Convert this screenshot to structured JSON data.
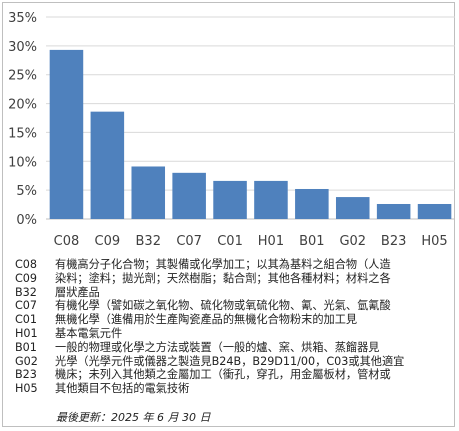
{
  "chart_data": {
    "type": "bar",
    "categories": [
      "C08",
      "C09",
      "B32",
      "C07",
      "C01",
      "H01",
      "B01",
      "G02",
      "B23",
      "H05"
    ],
    "values": [
      29.3,
      18.6,
      9.1,
      8.0,
      6.6,
      6.6,
      5.2,
      3.8,
      2.6,
      2.6
    ],
    "yticks": [
      "0%",
      "5%",
      "10%",
      "15%",
      "20%",
      "25%",
      "30%",
      "35%"
    ],
    "ylim": [
      0,
      35
    ],
    "grid": true,
    "bar_color": "#4f81bd"
  },
  "legend_lines": [
    {
      "code": "C08",
      "text": "有機高分子化合物；其製備或化學加工；以其為基料之組合物（人造"
    },
    {
      "code": "C09",
      "text": "染料；塗料；拋光劑；天然樹脂；黏合劑；其他各種材料；材料之各"
    },
    {
      "code": "B32",
      "text": "層狀產品"
    },
    {
      "code": "C07",
      "text": "有機化學（譬如碳之氧化物、硫化物或氧硫化物、氰、光氣、氫氰酸"
    },
    {
      "code": "C01",
      "text": "無機化學（進備用於生產陶瓷產品的無機化合物粉末的加工見"
    },
    {
      "code": "H01",
      "text": "基本電氣元件"
    },
    {
      "code": "B01",
      "text": "一般的物理或化學之方法或裝置（一般的爐、窯、烘箱、蒸餾器見"
    },
    {
      "code": "G02",
      "text": "光學（光學元件或儀器之製造見B24B，B29D11/00，C03或其他適宜"
    },
    {
      "code": "B23",
      "text": "機床；未列入其他類之金屬加工（衝孔，穿孔，用金屬板材，管材或"
    },
    {
      "code": "H05",
      "text": "其他類目不包括的電氣技術"
    }
  ],
  "updated": "最後更新：2025 年 6 月 30 日"
}
